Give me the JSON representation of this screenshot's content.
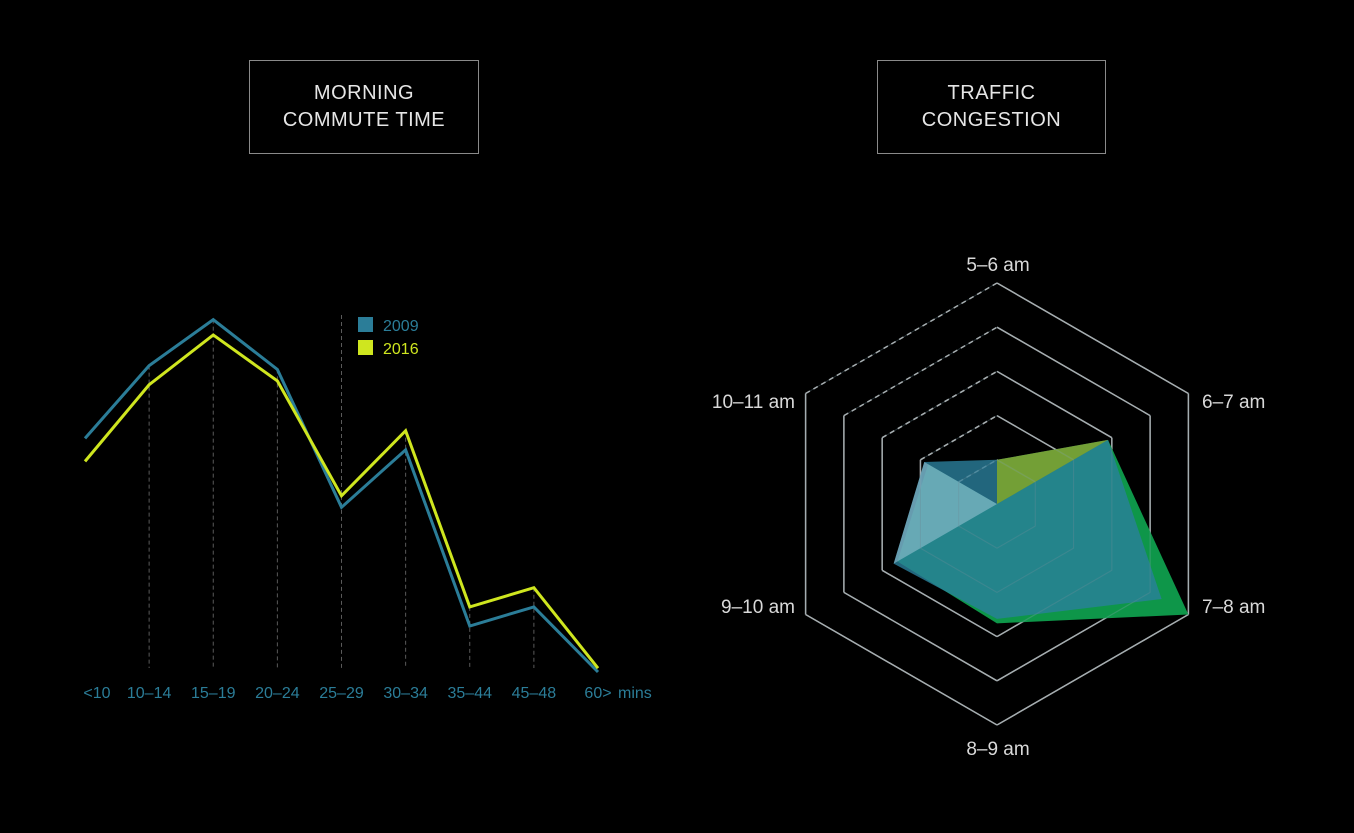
{
  "charts": [
    {
      "title_line1": "MORNING",
      "title_line2": "COMMUTE TIME"
    },
    {
      "title_line1": "TRAFFIC",
      "title_line2": "CONGESTION"
    }
  ],
  "colors": {
    "background": "#000000",
    "series_2009": "#2b7d98",
    "series_2016": "#cfe61f",
    "radar_grid": "#bfbfbf",
    "radar_2016": "#0f9e4d",
    "radar_2009": "#2a7f9c"
  },
  "chart_data": [
    {
      "type": "line",
      "title": "MORNING COMMUTE TIME",
      "categories": [
        "<10",
        "10–14",
        "15–19",
        "20–24",
        "25–29",
        "30–34",
        "35–44",
        "45–48",
        "60>"
      ],
      "x_unit_label": "mins",
      "series": [
        {
          "name": "2009",
          "values": [
            61,
            80,
            92,
            79,
            43,
            58,
            12,
            17,
            0
          ]
        },
        {
          "name": "2016",
          "values": [
            55,
            75,
            88,
            76,
            46,
            63,
            17,
            22,
            1
          ]
        }
      ],
      "ylim": [
        0,
        100
      ],
      "legend_position": "top-center",
      "grid": false
    },
    {
      "type": "radar",
      "title": "TRAFFIC CONGESTION",
      "axes": [
        "5–6 am",
        "6–7 am",
        "7–8 am",
        "8–9 am",
        "9–10 am",
        "10–11 am"
      ],
      "rings": 5,
      "rlim": [
        0,
        5
      ],
      "series": [
        {
          "values": [
            0,
            2.9,
            5,
            2.7,
            2.6,
            1.8
          ]
        },
        {
          "values": [
            1,
            2.9,
            4.3,
            2.6,
            2.7,
            1.9
          ]
        }
      ],
      "legend": false
    }
  ]
}
